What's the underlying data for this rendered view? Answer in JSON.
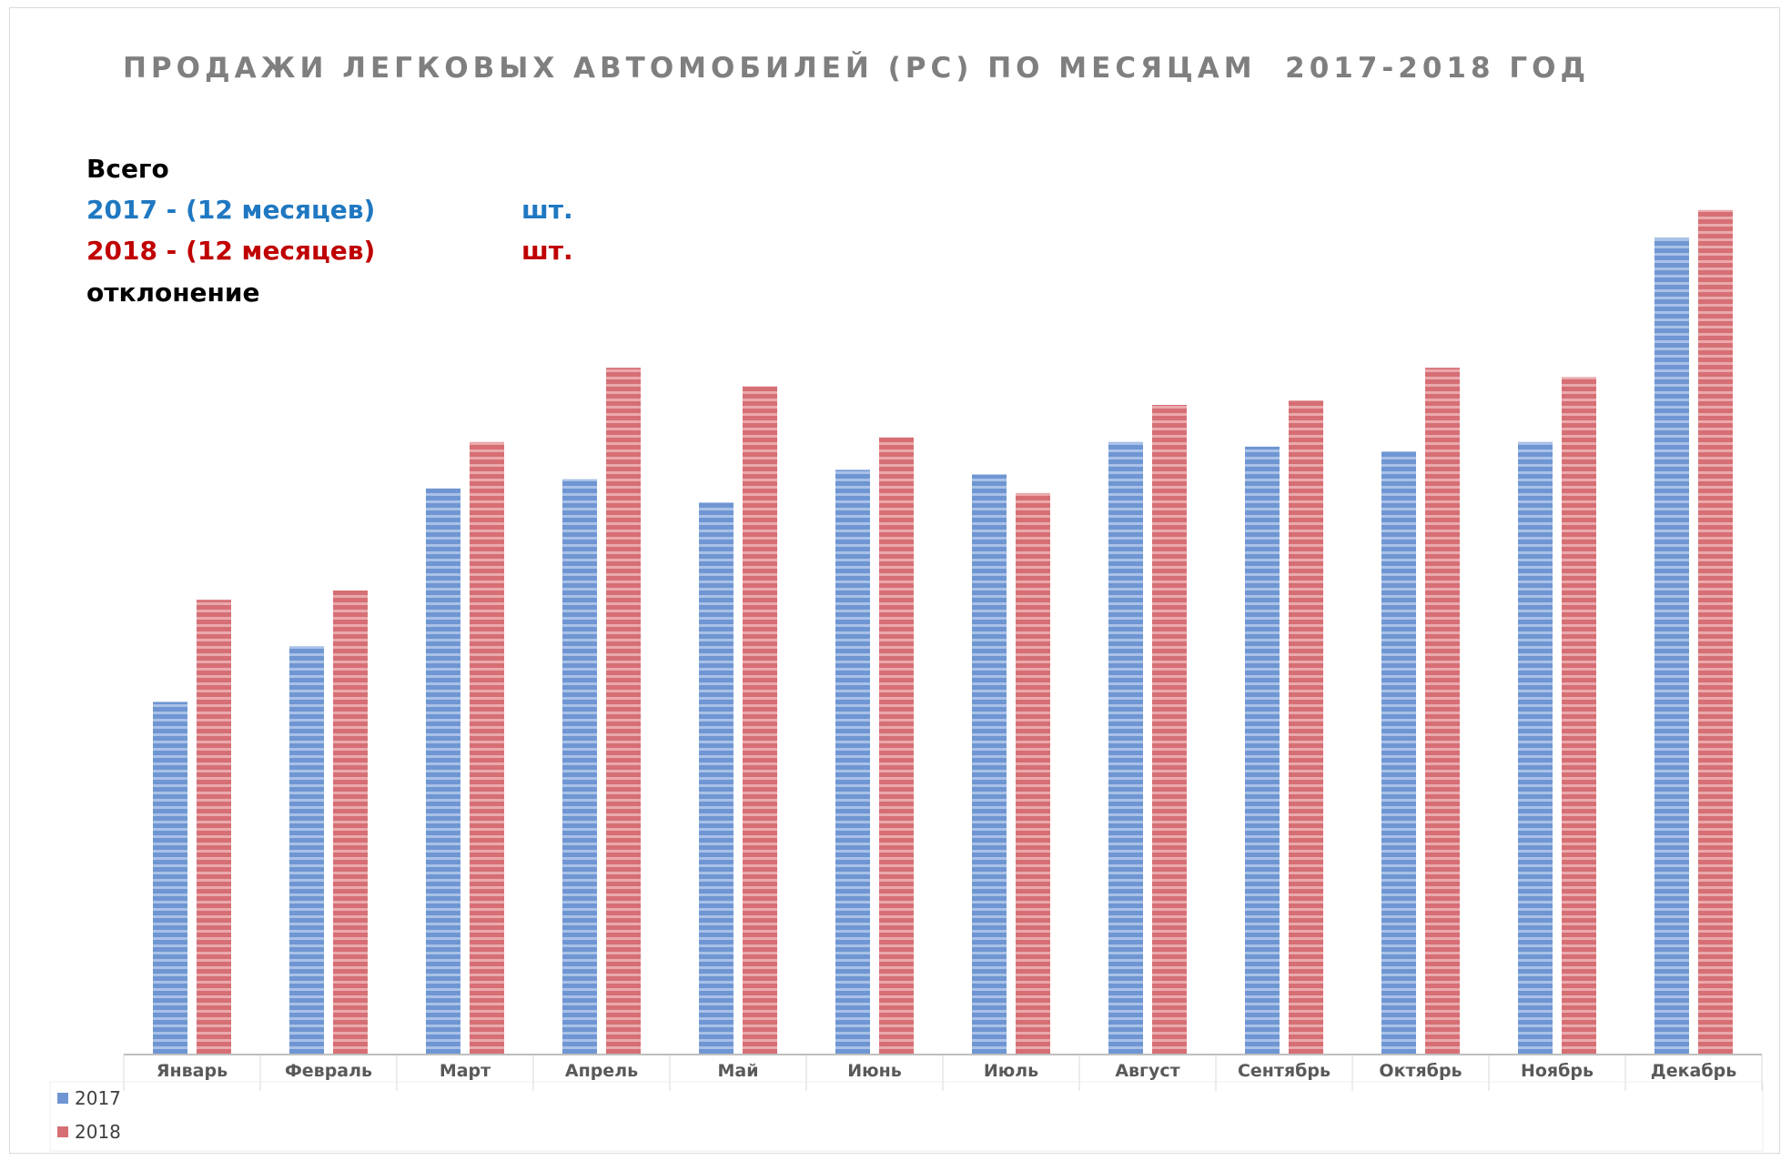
{
  "colors": {
    "series_2017": "#6f96d2",
    "series_2018": "#d66f74",
    "text_2017": "#1f78c1",
    "text_2018": "#c00000"
  },
  "summary": {
    "heading": "Всего",
    "line_2017": "2017 - (12 месяцев)",
    "line_2018": "2018 - (12 месяцев)",
    "unit": "шт.",
    "deviation": "отклонение"
  },
  "chart_data": {
    "type": "bar",
    "title": "ПРОДАЖИ ЛЕГКОВЫХ АВТОМОБИЛЕЙ (PC) ПО МЕСЯЦАМ  2017-2018 ГОД",
    "xlabel": "",
    "ylabel": "",
    "categories": [
      "Январь",
      "Февраль",
      "Март",
      "Апрель",
      "Май",
      "Июнь",
      "Июль",
      "Август",
      "Сентябрь",
      "Октябрь",
      "Ноябрь",
      "Декабрь"
    ],
    "series": [
      {
        "name": "2017",
        "values": [
          38,
          44,
          61,
          62,
          59.5,
          63,
          62.5,
          66,
          65.5,
          65,
          66,
          88
        ]
      },
      {
        "name": "2018",
        "values": [
          49,
          50,
          66,
          74,
          72,
          66.5,
          60.5,
          70,
          70.5,
          74,
          73,
          91
        ]
      }
    ],
    "ylim": [
      0,
      100
    ],
    "grid": false,
    "legend": "bottom-left"
  }
}
